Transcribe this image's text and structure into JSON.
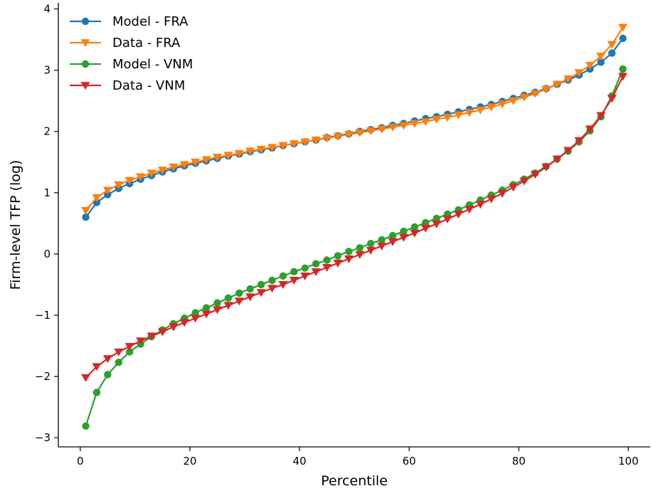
{
  "chart_data": {
    "type": "line",
    "title": "",
    "xlabel": "Percentile",
    "ylabel": "Firm-level TFP (log)",
    "xlim": [
      -4,
      104
    ],
    "ylim": [
      -3.15,
      4.1
    ],
    "xticks": [
      0,
      20,
      40,
      60,
      80,
      100
    ],
    "yticks": [
      -3,
      -2,
      -1,
      0,
      1,
      2,
      3,
      4
    ],
    "xtick_labels": [
      "0",
      "20",
      "40",
      "60",
      "80",
      "100"
    ],
    "ytick_labels": [
      "−3",
      "−2",
      "−1",
      "0",
      "1",
      "2",
      "3",
      "4"
    ],
    "grid": false,
    "legend_position": "top-left",
    "x": [
      1,
      3,
      5,
      7,
      9,
      11,
      13,
      15,
      17,
      19,
      21,
      23,
      25,
      27,
      29,
      31,
      33,
      35,
      37,
      39,
      41,
      43,
      45,
      47,
      49,
      51,
      53,
      55,
      57,
      59,
      61,
      63,
      65,
      67,
      69,
      71,
      73,
      75,
      77,
      79,
      81,
      83,
      85,
      87,
      89,
      91,
      93,
      95,
      97,
      99
    ],
    "series": [
      {
        "name": "Model - FRA",
        "color": "#1f77b4",
        "marker": "circle",
        "values": [
          0.6,
          0.84,
          0.97,
          1.07,
          1.15,
          1.22,
          1.28,
          1.34,
          1.39,
          1.44,
          1.48,
          1.52,
          1.56,
          1.6,
          1.63,
          1.67,
          1.7,
          1.73,
          1.77,
          1.8,
          1.83,
          1.86,
          1.9,
          1.93,
          1.96,
          2.0,
          2.03,
          2.06,
          2.1,
          2.13,
          2.17,
          2.21,
          2.24,
          2.28,
          2.32,
          2.36,
          2.4,
          2.44,
          2.49,
          2.54,
          2.59,
          2.64,
          2.7,
          2.77,
          2.84,
          2.92,
          3.02,
          3.13,
          3.28,
          3.52
        ]
      },
      {
        "name": "Data - FRA",
        "color": "#ff7f0e",
        "marker": "triangle-down",
        "values": [
          0.71,
          0.92,
          1.04,
          1.13,
          1.2,
          1.26,
          1.32,
          1.37,
          1.42,
          1.46,
          1.5,
          1.54,
          1.58,
          1.61,
          1.64,
          1.68,
          1.71,
          1.74,
          1.77,
          1.8,
          1.83,
          1.86,
          1.89,
          1.92,
          1.95,
          1.98,
          2.01,
          2.04,
          2.07,
          2.1,
          2.13,
          2.16,
          2.2,
          2.23,
          2.27,
          2.31,
          2.35,
          2.4,
          2.45,
          2.5,
          2.56,
          2.62,
          2.69,
          2.77,
          2.86,
          2.96,
          3.08,
          3.23,
          3.42,
          3.7
        ]
      },
      {
        "name": "Model - VNM",
        "color": "#2ca02c",
        "marker": "circle",
        "values": [
          -2.81,
          -2.26,
          -1.97,
          -1.77,
          -1.6,
          -1.47,
          -1.35,
          -1.24,
          -1.14,
          -1.05,
          -0.96,
          -0.88,
          -0.8,
          -0.72,
          -0.64,
          -0.57,
          -0.5,
          -0.43,
          -0.36,
          -0.29,
          -0.23,
          -0.16,
          -0.1,
          -0.03,
          0.04,
          0.1,
          0.17,
          0.23,
          0.3,
          0.37,
          0.44,
          0.51,
          0.58,
          0.65,
          0.72,
          0.8,
          0.88,
          0.96,
          1.04,
          1.13,
          1.22,
          1.32,
          1.43,
          1.55,
          1.68,
          1.83,
          2.01,
          2.24,
          2.58,
          3.02
        ]
      },
      {
        "name": "Data - VNM",
        "color": "#d62728",
        "marker": "triangle-down",
        "values": [
          -2.02,
          -1.84,
          -1.71,
          -1.6,
          -1.51,
          -1.42,
          -1.34,
          -1.27,
          -1.19,
          -1.12,
          -1.05,
          -0.98,
          -0.91,
          -0.84,
          -0.77,
          -0.7,
          -0.63,
          -0.56,
          -0.5,
          -0.43,
          -0.36,
          -0.29,
          -0.22,
          -0.15,
          -0.08,
          -0.01,
          0.06,
          0.13,
          0.2,
          0.27,
          0.34,
          0.42,
          0.49,
          0.57,
          0.65,
          0.73,
          0.81,
          0.9,
          0.99,
          1.09,
          1.19,
          1.3,
          1.42,
          1.55,
          1.69,
          1.85,
          2.04,
          2.26,
          2.54,
          2.9
        ]
      }
    ]
  }
}
